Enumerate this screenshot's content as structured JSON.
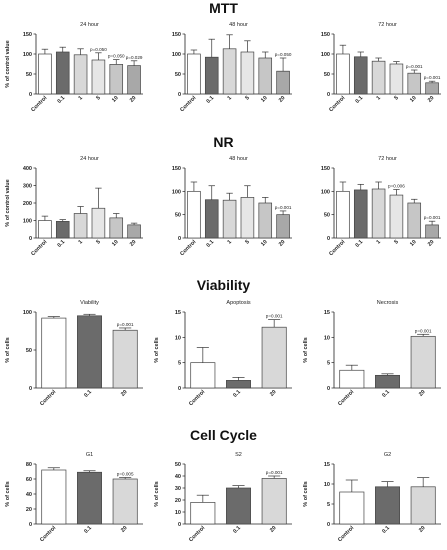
{
  "sections": [
    {
      "title": "MTT"
    },
    {
      "title": "NR"
    },
    {
      "title": "Viability"
    },
    {
      "title": "Cell Cycle"
    }
  ],
  "styles": {
    "bar_fills": [
      "#ffffff",
      "#6b6b6b",
      "#d8d8d8",
      "#e6e6e6",
      "#c6c6c6",
      "#a8a8a8"
    ],
    "viability_fills": [
      "#ffffff",
      "#6b6b6b",
      "#d8d8d8"
    ],
    "axis_color": "#222222"
  },
  "chart_data": [
    {
      "type": "bar",
      "title": "24 hour",
      "ylabel": "% of control value",
      "categories": [
        "Control",
        "0.1",
        "1",
        "5",
        "10",
        "20"
      ],
      "ylim": [
        0,
        150
      ],
      "yticks": [
        0,
        50,
        100,
        150
      ],
      "values": [
        100,
        105,
        98,
        85,
        74,
        71
      ],
      "errors": [
        12,
        12,
        15,
        18,
        12,
        12
      ],
      "annotations": [
        "",
        "",
        "",
        "p=0.050",
        "p=0.050",
        "p=0.029"
      ]
    },
    {
      "type": "bar",
      "title": "48 hour",
      "ylabel": "",
      "categories": [
        "Control",
        "0.1",
        "1",
        "5",
        "10",
        "20"
      ],
      "ylim": [
        0,
        150
      ],
      "yticks": [
        0,
        50,
        100,
        150
      ],
      "values": [
        100,
        92,
        113,
        105,
        90,
        57
      ],
      "errors": [
        10,
        45,
        35,
        28,
        15,
        33
      ],
      "annotations": [
        "",
        "",
        "",
        "",
        "",
        "p=0.050"
      ]
    },
    {
      "type": "bar",
      "title": "72 hour",
      "ylabel": "",
      "categories": [
        "Control",
        "0.1",
        "1",
        "5",
        "10",
        "20"
      ],
      "ylim": [
        0,
        150
      ],
      "yticks": [
        0,
        50,
        100,
        150
      ],
      "values": [
        100,
        93,
        82,
        75,
        52,
        28
      ],
      "errors": [
        22,
        12,
        8,
        6,
        8,
        4
      ],
      "annotations": [
        "",
        "",
        "",
        "",
        "p=0.001",
        "p=0.001"
      ]
    },
    {
      "type": "bar",
      "title": "24 hour",
      "ylabel": "% of control value",
      "categories": [
        "Control",
        "0.1",
        "1",
        "5",
        "10",
        "20"
      ],
      "ylim": [
        0,
        400
      ],
      "yticks": [
        0,
        100,
        200,
        300,
        400
      ],
      "values": [
        100,
        95,
        140,
        170,
        115,
        75
      ],
      "errors": [
        25,
        10,
        40,
        115,
        25,
        10
      ],
      "annotations": [
        "",
        "",
        "",
        "",
        "",
        ""
      ]
    },
    {
      "type": "bar",
      "title": "48 hour",
      "ylabel": "",
      "categories": [
        "Control",
        "0.1",
        "1",
        "5",
        "10",
        "20"
      ],
      "ylim": [
        0,
        150
      ],
      "yticks": [
        0,
        50,
        100,
        150
      ],
      "values": [
        100,
        82,
        81,
        87,
        75,
        50
      ],
      "errors": [
        20,
        30,
        15,
        25,
        12,
        8
      ],
      "annotations": [
        "",
        "",
        "",
        "",
        "",
        "p=0.001"
      ]
    },
    {
      "type": "bar",
      "title": "72 hour",
      "ylabel": "",
      "categories": [
        "Control",
        "0.1",
        "1",
        "5",
        "10",
        "20"
      ],
      "ylim": [
        0,
        150
      ],
      "yticks": [
        0,
        50,
        100,
        150
      ],
      "values": [
        100,
        103,
        105,
        92,
        75,
        28
      ],
      "errors": [
        20,
        12,
        15,
        12,
        8,
        8
      ],
      "annotations": [
        "",
        "",
        "",
        "p=0.006",
        "",
        "p=0.001"
      ]
    },
    {
      "type": "bar",
      "title": "Viability",
      "ylabel": "% of cells",
      "categories": [
        "Control",
        "0.1",
        "20"
      ],
      "ylim": [
        0,
        100
      ],
      "yticks": [
        0,
        50,
        100
      ],
      "values": [
        92,
        95,
        76
      ],
      "errors": [
        2,
        2,
        3
      ],
      "annotations": [
        "",
        "",
        "p=0.001"
      ]
    },
    {
      "type": "bar",
      "title": "Apoptosis",
      "ylabel": "% of cells",
      "categories": [
        "Control",
        "0.1",
        "20"
      ],
      "ylim": [
        0,
        15
      ],
      "yticks": [
        0,
        5,
        10,
        15
      ],
      "values": [
        5,
        1.5,
        12
      ],
      "errors": [
        3,
        0.6,
        1.5
      ],
      "annotations": [
        "",
        "",
        "p=0.001"
      ]
    },
    {
      "type": "bar",
      "title": "Necrosis",
      "ylabel": "% of cells",
      "categories": [
        "Control",
        "0.1",
        "20"
      ],
      "ylim": [
        0,
        15
      ],
      "yticks": [
        0,
        5,
        10,
        15
      ],
      "values": [
        3.5,
        2.5,
        10.2
      ],
      "errors": [
        1,
        0.3,
        0.4
      ],
      "annotations": [
        "",
        "",
        "p=0.001"
      ]
    },
    {
      "type": "bar",
      "title": "G1",
      "ylabel": "% of cells",
      "categories": [
        "Control",
        "0.1",
        "20"
      ],
      "ylim": [
        0,
        80
      ],
      "yticks": [
        0,
        20,
        40,
        60,
        80
      ],
      "values": [
        72,
        69,
        60
      ],
      "errors": [
        3,
        2,
        2
      ],
      "annotations": [
        "",
        "",
        "p=0.005"
      ]
    },
    {
      "type": "bar",
      "title": "S2",
      "ylabel": "% of cells",
      "categories": [
        "Control",
        "0.1",
        "20"
      ],
      "ylim": [
        0,
        50
      ],
      "yticks": [
        0,
        10,
        20,
        30,
        40,
        50
      ],
      "values": [
        18,
        30,
        38
      ],
      "errors": [
        6,
        2,
        2
      ],
      "annotations": [
        "",
        "",
        "p=0.001"
      ]
    },
    {
      "type": "bar",
      "title": "G2",
      "ylabel": "% of cells",
      "categories": [
        "Control",
        "0.1",
        "20"
      ],
      "ylim": [
        0,
        15
      ],
      "yticks": [
        0,
        5,
        10,
        15
      ],
      "values": [
        8,
        9.3,
        9.3
      ],
      "errors": [
        3,
        1.3,
        2.3
      ],
      "annotations": [
        "",
        "",
        ""
      ]
    }
  ]
}
